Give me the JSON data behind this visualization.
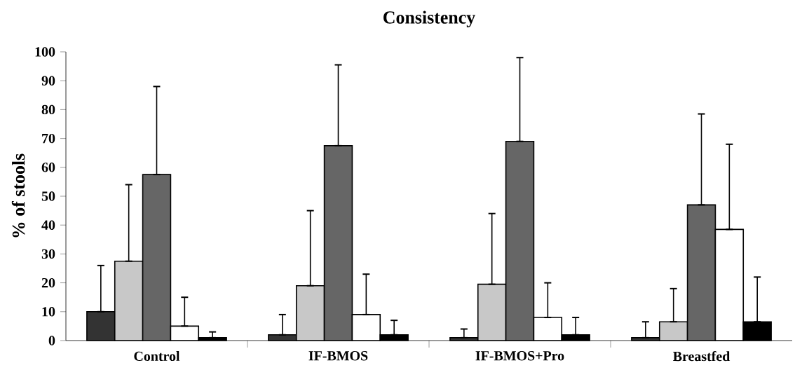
{
  "chart_data": {
    "type": "bar",
    "title": "Consistency",
    "ylabel": "% of stools",
    "categories": [
      "Control",
      "IF-BMOS",
      "IF-BMOS+Pro",
      "Breastfed"
    ],
    "series": [
      {
        "color": "#333333",
        "values": [
          10,
          2,
          1,
          1
        ],
        "errors": [
          [
            10,
            26
          ],
          [
            2,
            9
          ],
          [
            1,
            4
          ],
          [
            1,
            6.5
          ]
        ]
      },
      {
        "color": "#c8c8c8",
        "values": [
          27.5,
          19,
          19.5,
          6.5
        ],
        "errors": [
          [
            27.5,
            54
          ],
          [
            19,
            45
          ],
          [
            19.5,
            44
          ],
          [
            6.5,
            18
          ]
        ]
      },
      {
        "color": "#666666",
        "values": [
          57.5,
          67.5,
          69,
          47
        ],
        "errors": [
          [
            57.5,
            88
          ],
          [
            67.5,
            95.5
          ],
          [
            69,
            98
          ],
          [
            47,
            78.5
          ]
        ]
      },
      {
        "color": "#ffffff",
        "values": [
          5,
          9,
          8,
          38.5
        ],
        "errors": [
          [
            5,
            15
          ],
          [
            9,
            23
          ],
          [
            8,
            20
          ],
          [
            38.5,
            68
          ]
        ]
      },
      {
        "color": "#000000",
        "values": [
          1,
          2,
          2,
          6.5
        ],
        "errors": [
          [
            1,
            3
          ],
          [
            2,
            7
          ],
          [
            2,
            8
          ],
          [
            6.5,
            22
          ]
        ]
      }
    ],
    "ylim": [
      0,
      100
    ],
    "yticks": [
      0,
      10,
      20,
      30,
      40,
      50,
      60,
      70,
      80,
      90,
      100
    ]
  }
}
